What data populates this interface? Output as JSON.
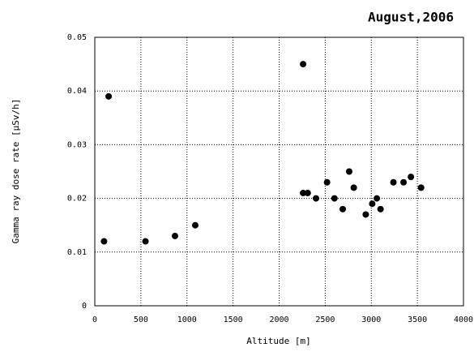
{
  "chart_data": {
    "type": "scatter",
    "title": "August,2006",
    "x_label": "Altitude [m]",
    "y_label": "Gamma ray dose rate [μSv/h]",
    "x": [
      100,
      150,
      550,
      870,
      1090,
      2260,
      2260,
      2310,
      2400,
      2520,
      2600,
      2690,
      2760,
      2810,
      2940,
      3010,
      3060,
      3100,
      3240,
      3350,
      3430,
      3540
    ],
    "y": [
      0.012,
      0.039,
      0.012,
      0.013,
      0.015,
      0.045,
      0.021,
      0.021,
      0.02,
      0.023,
      0.02,
      0.018,
      0.025,
      0.022,
      0.017,
      0.019,
      0.02,
      0.018,
      0.023,
      0.023,
      0.024,
      0.022
    ],
    "color": "#000000",
    "xlim": [
      0,
      4000
    ],
    "xticks": [
      0,
      500,
      1000,
      1500,
      2000,
      2500,
      3000,
      3500,
      4000
    ],
    "ylim": [
      0,
      0.05
    ],
    "yticks": [
      0,
      0.01,
      0.02,
      0.03,
      0.04,
      0.05
    ],
    "grid": true
  }
}
